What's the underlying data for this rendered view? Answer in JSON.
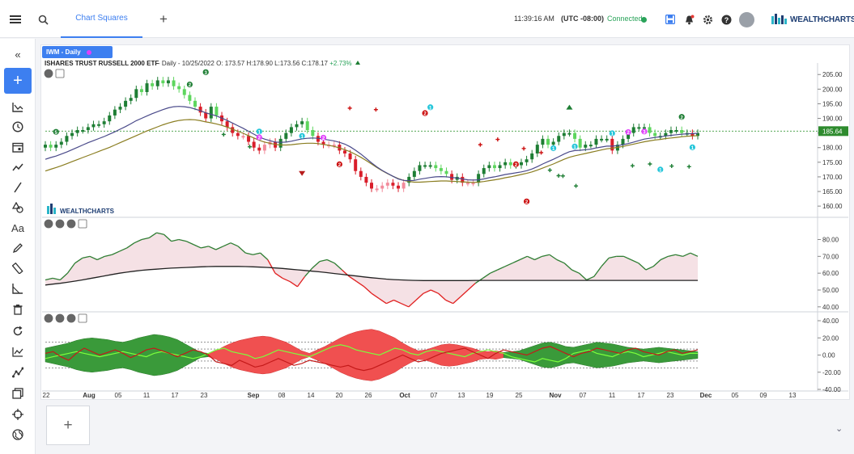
{
  "topbar": {
    "tab_label": "Chart Squares",
    "time": "11:39:16 AM",
    "timezone": "(UTC -08:00)",
    "connection": "Connected",
    "brand": "WEALTHCHARTS"
  },
  "chart_chip": "IWM - Daily",
  "add_panel_label": "+",
  "chart_data": {
    "type": "line",
    "symbol": "IWM",
    "title": "ISHARES TRUST RUSSELL 2000 ETF",
    "interval": "Daily",
    "quote": {
      "date": "10/25/2022",
      "open": "O: 173.57",
      "high": "H:178.90",
      "low": "L:173.56",
      "close": "C:178.17",
      "change": "+2.73%"
    },
    "watermark": "WEALTHCHARTS",
    "last_price_label": "185.64",
    "last_price": 185.64,
    "x_tick_labels": [
      "22",
      "Aug",
      "05",
      "11",
      "17",
      "23",
      "Sep",
      "08",
      "14",
      "20",
      "26",
      "Oct",
      "07",
      "13",
      "19",
      "25",
      "Nov",
      "07",
      "11",
      "17",
      "23",
      "Dec",
      "05",
      "09",
      "13"
    ],
    "price_panel": {
      "ylim": [
        157,
        207
      ],
      "y_ticks": [
        205,
        200,
        195,
        190,
        185,
        180,
        175,
        170,
        165,
        160
      ],
      "y_tick_labels": [
        "205.00",
        "200.00",
        "195.00",
        "190.00",
        "185.00",
        "180.00",
        "175.00",
        "170.00",
        "165.00",
        "160.00"
      ],
      "close": [
        181,
        180,
        181,
        182,
        184,
        185,
        186,
        186,
        187,
        188,
        188,
        189,
        191,
        193,
        194,
        196,
        197,
        200,
        199,
        202,
        201,
        203,
        202,
        203,
        201,
        200,
        198,
        196,
        194,
        192,
        190,
        194,
        191,
        189,
        187,
        185,
        184,
        184,
        182,
        180,
        179,
        181,
        182,
        180,
        183,
        185,
        187,
        188,
        189,
        186,
        184,
        182,
        181,
        181,
        181,
        179,
        178,
        176,
        172,
        170,
        168,
        166,
        166,
        167,
        168,
        167,
        166,
        168,
        170,
        172,
        174,
        174,
        174,
        173,
        172,
        171,
        169,
        170,
        168,
        168,
        168,
        171,
        173,
        174,
        173,
        174,
        175,
        174,
        174,
        175,
        176,
        178,
        181,
        183,
        181,
        182,
        184,
        185,
        185,
        183,
        180,
        181,
        181,
        183,
        183,
        183,
        179,
        181,
        183,
        185,
        187,
        187,
        187,
        185,
        184,
        184,
        185,
        186,
        186,
        185,
        185,
        184,
        185
      ],
      "sma_fast": [
        176,
        176.6,
        177.1,
        177.8,
        178.5,
        179.3,
        180.1,
        180.9,
        181.7,
        182.4,
        183.1,
        183.8,
        184.6,
        185.4,
        186.3,
        187.2,
        188.2,
        189.2,
        190.0,
        190.8,
        191.6,
        192.3,
        193.0,
        193.6,
        194.0,
        194.1,
        194.0,
        193.7,
        193.2,
        192.6,
        191.9,
        191.4,
        190.8,
        190.1,
        189.3,
        188.4,
        187.5,
        186.6,
        185.6,
        184.6,
        183.6,
        182.9,
        182.4,
        181.9,
        181.8,
        181.9,
        182.2,
        182.6,
        183.0,
        183.2,
        183.3,
        183.2,
        182.9,
        182.6,
        182.3,
        181.8,
        181.2,
        180.3,
        179.1,
        177.8,
        176.3,
        174.8,
        173.4,
        172.2,
        171.2,
        170.2,
        169.3,
        168.8,
        168.7,
        168.8,
        169.2,
        169.5,
        169.8,
        170.0,
        170.1,
        170.0,
        169.8,
        169.6,
        169.3,
        169.0,
        168.9,
        169.0,
        169.3,
        169.7,
        170.0,
        170.4,
        170.8,
        171.1,
        171.4,
        171.7,
        172.1,
        172.7,
        173.5,
        174.4,
        175.2,
        176.0,
        176.9,
        177.8,
        178.6,
        179.0,
        179.1,
        179.3,
        179.5,
        179.9,
        180.2,
        180.5,
        180.5,
        180.7,
        181.0,
        181.4,
        181.9,
        182.4,
        182.9,
        183.2,
        183.5,
        183.7,
        184.0,
        184.2,
        184.4,
        184.6,
        184.7,
        184.8,
        184.9
      ],
      "sma_slow": [
        172,
        172.6,
        173.2,
        173.8,
        174.5,
        175.2,
        175.9,
        176.6,
        177.3,
        178.0,
        178.7,
        179.4,
        180.1,
        180.9,
        181.7,
        182.5,
        183.3,
        184.1,
        184.9,
        185.7,
        186.4,
        187.1,
        187.8,
        188.4,
        188.9,
        189.3,
        189.5,
        189.6,
        189.5,
        189.2,
        188.8,
        188.5,
        188.1,
        187.6,
        187.0,
        186.3,
        185.6,
        184.9,
        184.1,
        183.3,
        182.5,
        181.9,
        181.5,
        181.1,
        180.9,
        180.9,
        181.0,
        181.2,
        181.4,
        181.5,
        181.5,
        181.4,
        181.1,
        180.8,
        180.4,
        179.9,
        179.3,
        178.6,
        177.7,
        176.7,
        175.6,
        174.4,
        173.2,
        172.1,
        171.1,
        170.2,
        169.4,
        168.8,
        168.4,
        168.2,
        168.2,
        168.3,
        168.4,
        168.5,
        168.6,
        168.6,
        168.5,
        168.4,
        168.3,
        168.2,
        168.1,
        168.2,
        168.4,
        168.7,
        169.0,
        169.3,
        169.7,
        170.0,
        170.4,
        170.8,
        171.2,
        171.7,
        172.3,
        173.0,
        173.7,
        174.4,
        175.2,
        176.0,
        176.7,
        177.2,
        177.6,
        178.0,
        178.4,
        178.8,
        179.2,
        179.6,
        179.8,
        180.1,
        180.4,
        180.8,
        181.2,
        181.6,
        182.0,
        182.3,
        182.6,
        182.8,
        183.1,
        183.3,
        183.5,
        183.7,
        183.9,
        184.0,
        184.1
      ]
    },
    "oscillator_panel": {
      "ylim": [
        38,
        86
      ],
      "y_ticks": [
        80,
        70,
        60,
        50,
        40
      ],
      "y_tick_labels": [
        "80.00",
        "70.00",
        "60.00",
        "50.00",
        "40.00"
      ],
      "line": [
        56,
        57,
        56,
        60,
        66,
        69,
        70,
        68,
        70,
        71,
        73,
        75,
        78,
        80,
        81,
        84,
        83,
        79,
        80,
        79,
        77,
        75,
        76,
        74,
        76,
        78,
        76,
        72,
        71,
        72,
        68,
        60,
        57,
        55,
        52,
        58,
        63,
        67,
        68,
        66,
        62,
        58,
        55,
        52,
        48,
        45,
        42,
        44,
        42,
        40,
        44,
        48,
        50,
        48,
        44,
        42,
        46,
        50,
        54,
        57,
        60,
        62,
        64,
        66,
        68,
        70,
        68,
        70,
        71,
        68,
        66,
        62,
        60,
        56,
        58,
        64,
        69,
        70,
        70,
        68,
        66,
        62,
        64,
        68,
        70,
        71,
        70,
        72,
        70
      ],
      "baseline": [
        53,
        53.5,
        54,
        54.6,
        55.3,
        56,
        56.8,
        57.6,
        58.4,
        59.2,
        60,
        60.6,
        61.2,
        61.7,
        62.1,
        62.4,
        62.7,
        63,
        63.2,
        63.4,
        63.6,
        63.8,
        63.9,
        64,
        64,
        64,
        64,
        63.9,
        63.8,
        63.6,
        63.4,
        63.1,
        62.8,
        62.4,
        62,
        61.6,
        61.2,
        60.8,
        60.3,
        59.8,
        59.3,
        58.8,
        58.3,
        57.8,
        57.3,
        56.9,
        56.5,
        56.2,
        56,
        55.8,
        55.7,
        55.6,
        55.6,
        55.6,
        55.6,
        55.6,
        55.6,
        55.6,
        55.7,
        55.7,
        55.7,
        55.7,
        55.7,
        55.7,
        55.7,
        55.7,
        55.7,
        55.7,
        55.7,
        55.7,
        55.7,
        55.7,
        55.7,
        55.7,
        55.7,
        55.7,
        55.7,
        55.7,
        55.7,
        55.7,
        55.7,
        55.7,
        55.7,
        55.7,
        55.7,
        55.7,
        55.7,
        55.7,
        55.7
      ]
    },
    "histogram_panel": {
      "ylim": [
        -40,
        40
      ],
      "y_ticks": [
        40,
        20,
        0,
        -20,
        -40
      ],
      "y_tick_labels": [
        "40.00",
        "20.00",
        "0.00",
        "-20.00",
        "-40.00"
      ],
      "band": [
        8,
        10,
        12,
        14,
        17,
        19,
        20,
        19,
        18,
        16,
        15,
        17,
        20,
        22,
        24,
        23,
        21,
        18,
        13,
        8,
        3,
        2,
        5,
        10,
        14,
        17,
        19,
        21,
        22,
        21,
        18,
        15,
        10,
        5,
        2,
        6,
        10,
        15,
        20,
        24,
        27,
        29,
        30,
        28,
        24,
        20,
        14,
        9,
        5,
        6,
        9,
        12,
        13,
        12,
        10,
        8,
        5,
        4,
        5,
        3,
        4,
        5,
        8,
        11,
        14,
        15,
        13,
        10,
        9,
        11,
        13,
        15,
        14,
        13,
        11,
        9,
        8,
        7,
        8,
        9,
        8,
        7,
        6,
        5,
        4
      ],
      "band_sign": [
        1,
        1,
        1,
        1,
        1,
        1,
        1,
        1,
        1,
        1,
        1,
        1,
        1,
        1,
        1,
        1,
        1,
        1,
        1,
        1,
        1,
        -1,
        -1,
        -1,
        -1,
        -1,
        -1,
        -1,
        -1,
        -1,
        -1,
        -1,
        -1,
        -1,
        -1,
        -1,
        -1,
        -1,
        -1,
        -1,
        -1,
        -1,
        -1,
        -1,
        -1,
        -1,
        -1,
        -1,
        -1,
        -1,
        -1,
        -1,
        -1,
        -1,
        -1,
        -1,
        -1,
        -1,
        -1,
        1,
        1,
        1,
        1,
        1,
        1,
        1,
        1,
        1,
        1,
        1,
        1,
        1,
        1,
        1,
        1,
        1,
        1,
        1,
        1,
        1,
        1,
        1,
        1,
        1,
        1
      ],
      "fast": [
        2,
        4,
        -2,
        -6,
        2,
        8,
        4,
        0,
        3,
        6,
        2,
        -3,
        1,
        6,
        8,
        5,
        2,
        -2,
        2,
        6,
        4,
        0,
        -8,
        -10,
        -12,
        -6,
        -10,
        -14,
        -12,
        -8,
        -4,
        -8,
        -12,
        -10,
        -6,
        -8,
        -10,
        -12,
        -14,
        -12,
        -16,
        -18,
        -16,
        -12,
        -8,
        -4,
        0,
        -4,
        -8,
        -6,
        -2,
        2,
        4,
        6,
        8,
        4,
        0,
        -4,
        2,
        6,
        4,
        2,
        0,
        4,
        8,
        10,
        6,
        2,
        -2,
        2,
        4,
        8,
        6,
        4,
        2,
        6,
        8,
        4,
        2,
        0,
        4,
        6,
        2,
        4,
        6
      ],
      "slow": [
        -4,
        -2,
        0,
        2,
        4,
        2,
        0,
        -2,
        0,
        2,
        4,
        2,
        0,
        -2,
        2,
        4,
        2,
        0,
        -2,
        -4,
        -2,
        2,
        6,
        8,
        4,
        2,
        0,
        -4,
        -2,
        2,
        6,
        4,
        2,
        0,
        -2,
        2,
        6,
        10,
        12,
        10,
        6,
        4,
        2,
        0,
        4,
        8,
        6,
        2,
        0,
        4,
        6,
        4,
        2,
        0,
        -2,
        2,
        4,
        6,
        4,
        2,
        -2,
        -4,
        -6,
        -8,
        -4,
        -6,
        -8,
        -4,
        2,
        4,
        6,
        2,
        0,
        -2,
        2,
        4,
        2,
        -2,
        0,
        2,
        4,
        2,
        0,
        2,
        2
      ]
    },
    "signal_markers": [
      {
        "label": "2",
        "day": 27,
        "price": 201.6,
        "color": "#1e7e34"
      },
      {
        "label": "3",
        "day": 30,
        "price": 205.8,
        "color": "#1e7e34"
      },
      {
        "label": "5",
        "day": 2,
        "price": 185.4,
        "color": "#1e7e34"
      },
      {
        "label": "2",
        "day": 40,
        "price": 183.5,
        "color": "#e040fb"
      },
      {
        "label": "1",
        "day": 40,
        "price": 185.5,
        "color": "#26c6da"
      },
      {
        "label": "2",
        "day": 52,
        "price": 183.4,
        "color": "#e040fb"
      },
      {
        "label": "1",
        "day": 48,
        "price": 184.0,
        "color": "#26c6da"
      },
      {
        "label": "2",
        "day": 55,
        "price": 174.3,
        "color": "#cc1111"
      },
      {
        "label": "2",
        "day": 71,
        "price": 191.8,
        "color": "#cc1111"
      },
      {
        "label": "1",
        "day": 72,
        "price": 193.8,
        "color": "#26c6da"
      },
      {
        "label": "2",
        "day": 88,
        "price": 174.3,
        "color": "#cc1111"
      },
      {
        "label": "2",
        "day": 90,
        "price": 161.6,
        "color": "#cc1111"
      },
      {
        "label": "1",
        "day": 95,
        "price": 179.8,
        "color": "#26c6da"
      },
      {
        "label": "1",
        "day": 99,
        "price": 180.4,
        "color": "#26c6da"
      },
      {
        "label": "1",
        "day": 106,
        "price": 184.9,
        "color": "#26c6da"
      },
      {
        "label": "2",
        "day": 109,
        "price": 185.3,
        "color": "#e040fb"
      },
      {
        "label": "3",
        "day": 112,
        "price": 185.5,
        "color": "#e040fb"
      },
      {
        "label": "2",
        "day": 119,
        "price": 190.5,
        "color": "#1e7e34"
      },
      {
        "label": "1",
        "day": 121,
        "price": 180.1,
        "color": "#26c6da"
      },
      {
        "label": "1",
        "day": 115,
        "price": 172.5,
        "color": "#26c6da"
      }
    ]
  }
}
